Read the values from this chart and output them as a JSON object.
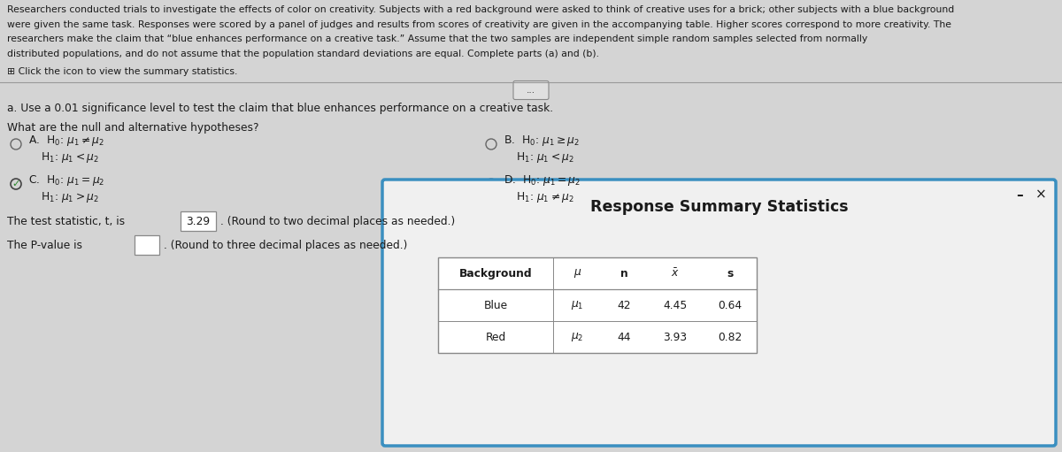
{
  "bg_color": "#d4d4d4",
  "text_color": "#1a1a1a",
  "para_lines": [
    "Researchers conducted trials to investigate the effects of color on creativity. Subjects with a red background were asked to think of creative uses for a brick; other subjects with a blue background",
    "were given the same task. Responses were scored by a panel of judges and results from scores of creativity are given in the accompanying table. Higher scores correspond to more creativity. The",
    "researchers make the claim that “blue enhances performance on a creative task.” Assume that the two samples are independent simple random samples selected from normally",
    "distributed populations, and do not assume that the population standard deviations are equal. Complete parts (a) and (b)."
  ],
  "click_icon_text": "⊞ Click the icon to view the summary statistics.",
  "part_a_text": "a. Use a 0.01 significance level to test the claim that blue enhances performance on a creative task.",
  "hypotheses_question": "What are the null and alternative hypotheses?",
  "test_stat_pre": "The test statistic, t, is ",
  "test_stat_val": "3.29",
  "test_stat_post": ". (Round to two decimal places as needed.)",
  "pvalue_pre": "The P-value is ",
  "pvalue_post": ". (Round to three decimal places as needed.)",
  "popup_title": "Response Summary Statistics",
  "table_headers": [
    "Background",
    "μ",
    "n",
    "x",
    "s"
  ],
  "table_row1": [
    "Blue",
    "μ₁",
    "42",
    "4.45",
    "0.64"
  ],
  "table_row2": [
    "Red",
    "μ₂",
    "44",
    "3.93",
    "0.82"
  ],
  "popup_bg": "#f0f0f0",
  "popup_border": "#3a8fc0",
  "separator_color": "#999999",
  "fs_para": 7.8,
  "fs_body": 8.8,
  "fs_popup_title": 12.5
}
